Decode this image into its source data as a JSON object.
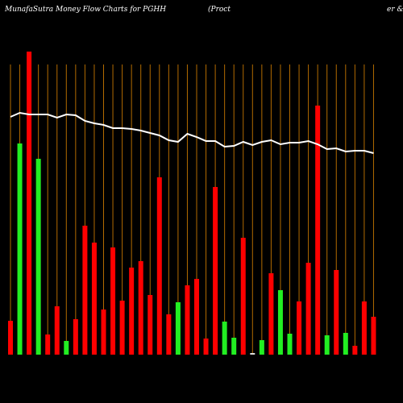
{
  "chart_data": {
    "type": "bar",
    "title": "MunafaSutra  Money Flow  Charts for PGHH",
    "subtitle_left": "(Proct",
    "subtitle_right": "er &amp;",
    "ylim": [
      0,
      380
    ],
    "series": [
      {
        "name": "money flow",
        "values": [
          42,
          262,
          376,
          243,
          25,
          60,
          17,
          44,
          160,
          139,
          56,
          133,
          67,
          108,
          116,
          74,
          220,
          50,
          65,
          86,
          94,
          20,
          208,
          41,
          21,
          145,
          2,
          18,
          101,
          80,
          26,
          66,
          114,
          309,
          24,
          105,
          27,
          11,
          66,
          47
        ],
        "colors": [
          "#ff0000",
          "#22ee22",
          "#ff0000",
          "#22ee22",
          "#ff0000",
          "#ff0000",
          "#22ee22",
          "#ff0000",
          "#ff0000",
          "#ff0000",
          "#ff0000",
          "#ff0000",
          "#ff0000",
          "#ff0000",
          "#ff0000",
          "#ff0000",
          "#ff0000",
          "#ff0000",
          "#22ee22",
          "#ff0000",
          "#ff0000",
          "#ff0000",
          "#ff0000",
          "#22ee22",
          "#22ee22",
          "#ff0000",
          "#dddddd",
          "#22ee22",
          "#ff0000",
          "#22ee22",
          "#22ee22",
          "#ff0000",
          "#ff0000",
          "#ff0000",
          "#22ee22",
          "#ff0000",
          "#22ee22",
          "#ff0000",
          "#ff0000",
          "#ff0000"
        ]
      },
      {
        "name": "price",
        "type": "line",
        "color": "#ffffff",
        "values": [
          295,
          300,
          298,
          298,
          298,
          294,
          298,
          297,
          290,
          287,
          285,
          281,
          281,
          280,
          278,
          275,
          272,
          266,
          264,
          274,
          270,
          265,
          265,
          258,
          259,
          264,
          260,
          264,
          266,
          261,
          263,
          263,
          265,
          261,
          255,
          256,
          252,
          253,
          253,
          250
        ]
      }
    ],
    "gridline_color": "#b36b00"
  }
}
